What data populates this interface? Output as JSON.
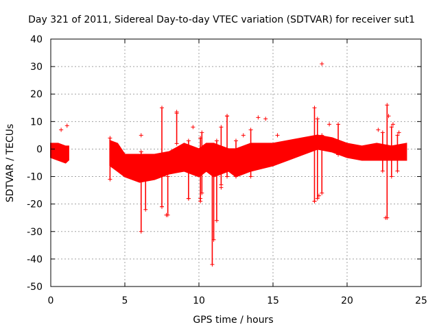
{
  "chart_data": {
    "type": "scatter",
    "title": "Day 321 of 2011, Sidereal Day-to-day VTEC variation (SDTVAR) for receiver sut1",
    "xlabel": "GPS time / hours",
    "ylabel": "SDTVAR / TECUs",
    "xlim": [
      0,
      25
    ],
    "ylim": [
      -50,
      40
    ],
    "xticks": [
      0,
      5,
      10,
      15,
      20,
      25
    ],
    "yticks": [
      -50,
      -40,
      -30,
      -20,
      -10,
      0,
      10,
      20,
      30,
      40
    ],
    "grid": true,
    "marker": "+",
    "color": "#ff0000",
    "series": [
      {
        "name": "SDTVAR",
        "band": [
          [
            0.0,
            -3,
            2
          ],
          [
            0.5,
            -4,
            2
          ],
          [
            1.0,
            -5,
            1
          ],
          [
            1.2,
            -4,
            1
          ],
          [
            4.0,
            -6,
            3
          ],
          [
            4.5,
            -8,
            2
          ],
          [
            5.0,
            -10,
            -2
          ],
          [
            6.0,
            -12,
            -2
          ],
          [
            7.0,
            -11,
            -2
          ],
          [
            8.0,
            -9,
            -1
          ],
          [
            9.0,
            -8,
            2
          ],
          [
            10.0,
            -10,
            0
          ],
          [
            10.5,
            -8,
            2
          ],
          [
            11.0,
            -10,
            2
          ],
          [
            12.0,
            -8,
            0
          ],
          [
            12.5,
            -10,
            0
          ],
          [
            13.5,
            -8,
            2
          ],
          [
            15.0,
            -6,
            2
          ],
          [
            16.0,
            -4,
            3
          ],
          [
            17.0,
            -2,
            4
          ],
          [
            18.0,
            0,
            5
          ],
          [
            19.0,
            -1,
            4
          ],
          [
            20.0,
            -3,
            2
          ],
          [
            21.0,
            -4,
            1
          ],
          [
            22.0,
            -4,
            2
          ],
          [
            23.0,
            -4,
            1
          ],
          [
            24.0,
            -4,
            2
          ]
        ],
        "spikes": [
          [
            4.0,
            -11,
            4
          ],
          [
            6.1,
            -30,
            -1
          ],
          [
            6.4,
            -22,
            -3
          ],
          [
            7.5,
            -21,
            15
          ],
          [
            7.9,
            -24,
            -10
          ],
          [
            8.5,
            2,
            13
          ],
          [
            9.3,
            -18,
            3
          ],
          [
            10.1,
            -19,
            4
          ],
          [
            10.2,
            -16,
            6
          ],
          [
            10.9,
            -42,
            0
          ],
          [
            11.0,
            -33,
            0
          ],
          [
            11.2,
            -26,
            3
          ],
          [
            11.5,
            -13,
            8
          ],
          [
            11.9,
            -10,
            12
          ],
          [
            12.5,
            -10,
            3
          ],
          [
            13.5,
            -10,
            7
          ],
          [
            17.8,
            -19,
            15
          ],
          [
            18.0,
            -18,
            11
          ],
          [
            18.3,
            -16,
            5
          ],
          [
            19.4,
            -2,
            9
          ],
          [
            22.4,
            -8,
            6
          ],
          [
            22.7,
            -25,
            16
          ],
          [
            23.0,
            -10,
            8
          ],
          [
            23.4,
            -8,
            5
          ]
        ],
        "outliers": [
          [
            0.7,
            7
          ],
          [
            1.1,
            8.5
          ],
          [
            6.1,
            5
          ],
          [
            7.5,
            -21
          ],
          [
            7.8,
            -24
          ],
          [
            8.5,
            13.5
          ],
          [
            9.3,
            -18
          ],
          [
            9.6,
            8
          ],
          [
            10.1,
            -18
          ],
          [
            11.5,
            -14
          ],
          [
            11.9,
            12
          ],
          [
            13.0,
            5
          ],
          [
            14.0,
            11.5
          ],
          [
            14.5,
            11
          ],
          [
            15.3,
            5
          ],
          [
            17.8,
            -19
          ],
          [
            18.3,
            31
          ],
          [
            18.1,
            -17
          ],
          [
            18.8,
            9
          ],
          [
            22.1,
            7
          ],
          [
            22.8,
            12
          ],
          [
            22.6,
            -25
          ],
          [
            23.1,
            9
          ],
          [
            23.5,
            6
          ]
        ]
      }
    ]
  }
}
